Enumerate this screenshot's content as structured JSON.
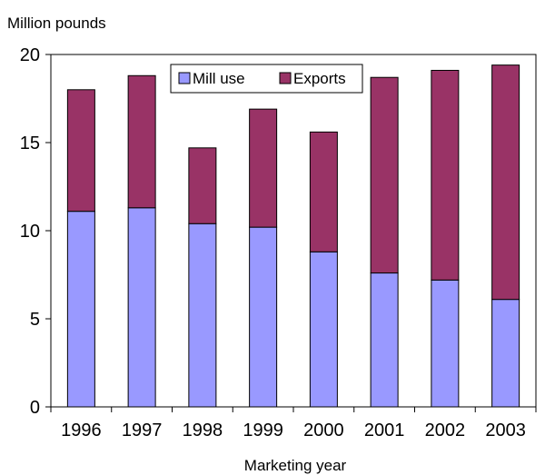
{
  "chart_data": {
    "type": "bar",
    "stacked": true,
    "ylabel": "Million pounds",
    "xlabel": "Marketing year",
    "categories": [
      "1996",
      "1997",
      "1998",
      "1999",
      "2000",
      "2001",
      "2002",
      "2003"
    ],
    "series": [
      {
        "name": "Mill use",
        "color": "#9999ff",
        "values": [
          11.1,
          11.3,
          10.4,
          10.2,
          8.8,
          7.6,
          7.2,
          6.1
        ]
      },
      {
        "name": "Exports",
        "color": "#993366",
        "values": [
          6.9,
          7.5,
          4.3,
          6.7,
          6.8,
          11.1,
          11.9,
          13.3
        ]
      }
    ],
    "ylim": [
      0,
      20
    ],
    "yticks": [
      "0",
      "5",
      "10",
      "15",
      "20"
    ],
    "grid": false,
    "legend": "top-center"
  }
}
